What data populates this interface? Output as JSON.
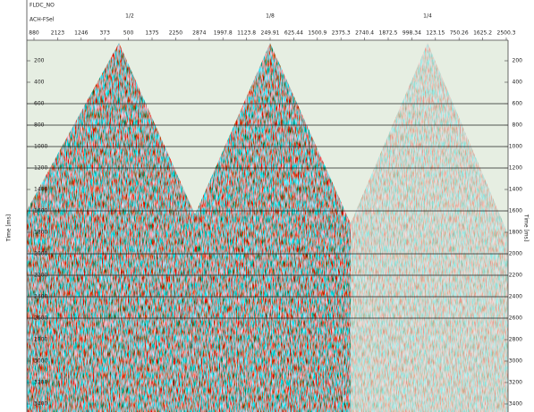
{
  "header": {
    "line_label": "FLDC_NO",
    "key_label": "ACH-FSel",
    "panel_labels": [
      "1/2",
      "1/8",
      "1/4"
    ],
    "trace_labels": [
      "880",
      "2123",
      "1246",
      "373",
      "500",
      "1375",
      "2250",
      "2874",
      "1997.8",
      "1123.8",
      "249.91",
      "625.44",
      "1500.9",
      "2375.3",
      "2740.4",
      "1872.5",
      "998.34",
      "123.15",
      "750.26",
      "1625.2",
      "2500.3"
    ]
  },
  "axes": {
    "left_title": "Time [ms]",
    "right_title": "Time [ms]",
    "time_ticks": [
      "200",
      "400",
      "600",
      "800",
      "1000",
      "1200",
      "1400",
      "1600",
      "1800",
      "2000",
      "2200",
      "2400",
      "2600",
      "2800",
      "3000",
      "3200",
      "3400"
    ]
  }
}
